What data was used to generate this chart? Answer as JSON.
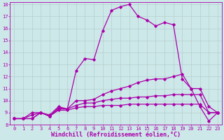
{
  "xlabel": "Windchill (Refroidissement éolien,°C)",
  "bg_color": "#cde8e8",
  "line_color": "#aa00aa",
  "xlim": [
    -0.5,
    23.5
  ],
  "ylim": [
    8,
    18.2
  ],
  "yticks": [
    8,
    9,
    10,
    11,
    12,
    13,
    14,
    15,
    16,
    17,
    18
  ],
  "xticks": [
    0,
    1,
    2,
    3,
    4,
    5,
    6,
    7,
    8,
    9,
    10,
    11,
    12,
    13,
    14,
    15,
    16,
    17,
    18,
    19,
    20,
    21,
    22,
    23
  ],
  "line1_x": [
    0,
    1,
    2,
    3,
    4,
    5,
    6,
    7,
    8,
    9,
    10,
    11,
    12,
    13,
    14,
    15,
    16,
    17,
    18,
    19,
    20,
    21,
    22,
    23
  ],
  "line1_y": [
    8.5,
    8.5,
    8.5,
    9.0,
    8.7,
    9.2,
    9.2,
    9.4,
    9.5,
    9.5,
    9.6,
    9.6,
    9.6,
    9.7,
    9.7,
    9.7,
    9.7,
    9.7,
    9.7,
    9.7,
    9.7,
    9.7,
    9.0,
    9.0
  ],
  "line2_x": [
    0,
    1,
    2,
    3,
    4,
    5,
    6,
    7,
    8,
    9,
    10,
    11,
    12,
    13,
    14,
    15,
    16,
    17,
    18,
    19,
    20,
    21,
    22,
    23
  ],
  "line2_y": [
    8.5,
    8.5,
    8.5,
    9.0,
    8.7,
    9.3,
    9.3,
    9.6,
    9.8,
    9.8,
    10.0,
    10.1,
    10.2,
    10.2,
    10.3,
    10.3,
    10.4,
    10.4,
    10.5,
    10.5,
    10.5,
    10.5,
    9.0,
    9.0
  ],
  "line3_x": [
    0,
    1,
    2,
    3,
    4,
    5,
    6,
    7,
    8,
    9,
    10,
    11,
    12,
    13,
    14,
    15,
    16,
    17,
    18,
    19,
    20,
    21,
    22,
    23
  ],
  "line3_y": [
    8.5,
    8.5,
    8.8,
    9.0,
    8.7,
    9.4,
    9.3,
    10.0,
    10.0,
    10.1,
    10.5,
    10.8,
    11.0,
    11.2,
    11.5,
    11.7,
    11.8,
    11.8,
    12.0,
    12.2,
    11.0,
    11.0,
    9.5,
    9.0
  ],
  "line4_x": [
    0,
    1,
    2,
    3,
    4,
    5,
    6,
    7,
    8,
    9,
    10,
    11,
    12,
    13,
    14,
    15,
    16,
    17,
    18,
    19,
    20,
    21,
    22,
    23
  ],
  "line4_y": [
    8.5,
    8.5,
    9.0,
    9.0,
    8.8,
    9.5,
    9.3,
    12.5,
    13.5,
    13.4,
    15.8,
    17.5,
    17.8,
    18.0,
    17.0,
    16.7,
    16.2,
    16.5,
    16.3,
    11.8,
    11.0,
    9.5,
    8.3,
    9.0
  ],
  "grid_color": "#b0c8c8",
  "marker": "D",
  "markersize": 1.8,
  "linewidth": 0.9,
  "tick_fontsize": 5.0,
  "xlabel_fontsize": 6.0
}
